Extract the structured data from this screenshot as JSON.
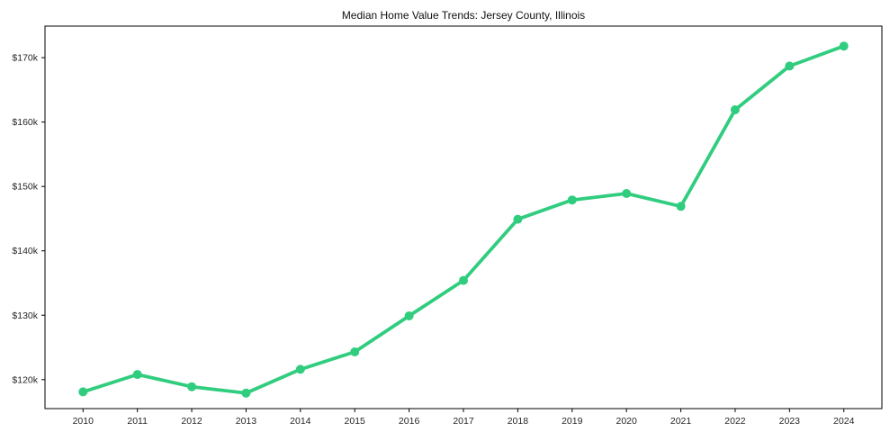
{
  "chart_data": {
    "type": "line",
    "title": "Median Home Value Trends: Jersey County, Illinois",
    "x": [
      2010,
      2011,
      2012,
      2013,
      2014,
      2015,
      2016,
      2017,
      2018,
      2019,
      2020,
      2021,
      2022,
      2023,
      2024
    ],
    "values": [
      118100,
      120800,
      118900,
      117900,
      121600,
      124300,
      129900,
      135400,
      144900,
      147900,
      148900,
      146900,
      161900,
      168700,
      171800
    ],
    "series_name": "Median home value",
    "xlabel": "",
    "ylabel": "",
    "xlim": [
      2009.3,
      2024.7
    ],
    "ylim": [
      115500,
      174900
    ],
    "yticks": [
      120000,
      130000,
      140000,
      150000,
      160000,
      170000
    ],
    "ytick_labels": [
      "$120k",
      "$130k",
      "$140k",
      "$150k",
      "$160k",
      "$170k"
    ],
    "xtick_labels": [
      "2010",
      "2011",
      "2012",
      "2013",
      "2014",
      "2015",
      "2016",
      "2017",
      "2018",
      "2019",
      "2020",
      "2021",
      "2022",
      "2023",
      "2024"
    ],
    "grid": false,
    "legend": "none",
    "colors": {
      "line": "#31cd7f",
      "marker": "#31cd7f",
      "spine": "#000000",
      "tick_text": "#262626",
      "title_text": "#111111",
      "background": "#ffffff"
    }
  }
}
